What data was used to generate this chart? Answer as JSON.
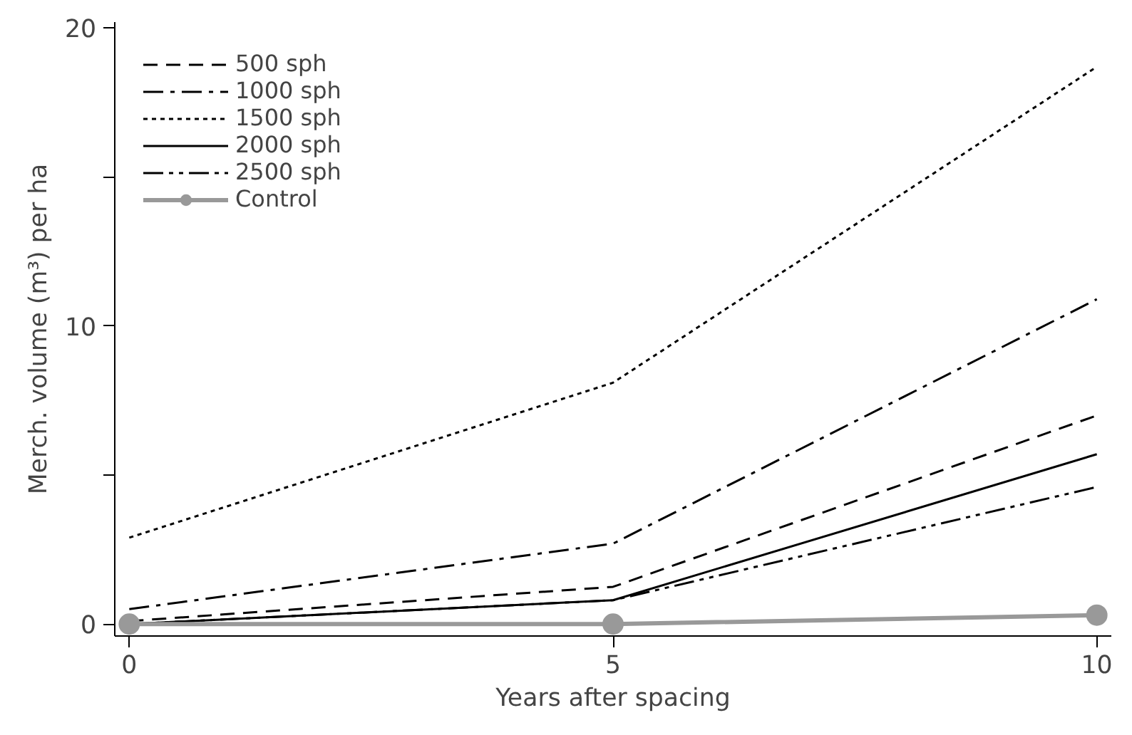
{
  "chart_data": {
    "type": "line",
    "xlabel": "Years after spacing",
    "ylabel": "Merch. volume (m³) per ha",
    "x": [
      0,
      5,
      10
    ],
    "xlim": [
      -0.15,
      10.15
    ],
    "xticks": [
      0,
      5,
      10
    ],
    "ylim": [
      -0.4,
      20.2
    ],
    "yticks": [
      0,
      {
        "value": 5,
        "label": null
      },
      10,
      {
        "value": 15,
        "label": null
      },
      20
    ],
    "grid": false,
    "legend": "top left",
    "series": [
      {
        "name": "500 sph",
        "color": "#000000",
        "line_style": "dashed",
        "values": [
          0.1,
          1.25,
          7.0
        ]
      },
      {
        "name": "1000 sph",
        "color": "#000000",
        "line_style": "dashdot",
        "values": [
          0.5,
          2.7,
          10.9
        ]
      },
      {
        "name": "1500 sph",
        "color": "#000000",
        "line_style": "dotted",
        "values": [
          2.9,
          8.1,
          18.7
        ]
      },
      {
        "name": "2000 sph",
        "color": "#000000",
        "line_style": "solid",
        "values": [
          0,
          0.8,
          5.7
        ]
      },
      {
        "name": "2500 sph",
        "color": "#000000",
        "line_style": "dashdotdot",
        "values": [
          0,
          0.8,
          4.6
        ]
      },
      {
        "name": "Control",
        "color": "#999999",
        "line_style": "solid",
        "marker": "circle",
        "values": [
          0,
          0,
          0.3
        ]
      }
    ]
  }
}
